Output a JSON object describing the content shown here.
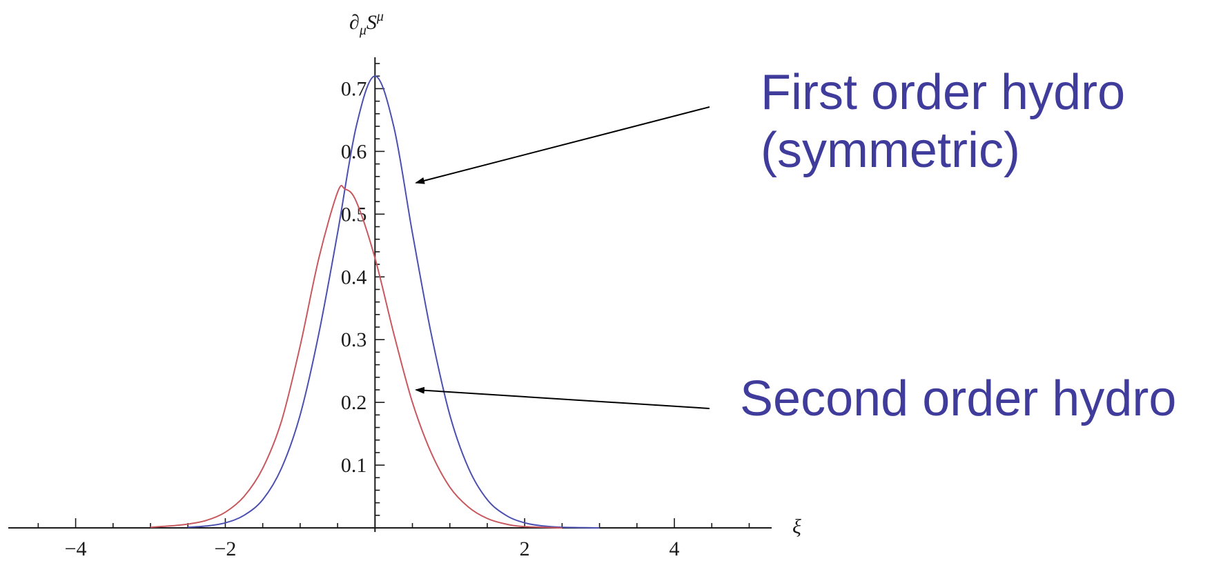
{
  "chart_data": {
    "type": "line",
    "xlabel": "ξ",
    "ylabel": "∂μSμ",
    "ylabel_base": "∂",
    "ylabel_sub": "μ",
    "ylabel_mid": "S",
    "ylabel_sup": "μ",
    "xlim": [
      -4.9,
      5.3
    ],
    "ylim": [
      0,
      0.75
    ],
    "x_ticks": [
      {
        "value": -4,
        "label": "−4"
      },
      {
        "value": -2,
        "label": "−2"
      },
      {
        "value": 2,
        "label": "2"
      },
      {
        "value": 4,
        "label": "4"
      }
    ],
    "y_ticks": [
      {
        "value": 0.1,
        "label": "0.1"
      },
      {
        "value": 0.2,
        "label": "0.2"
      },
      {
        "value": 0.3,
        "label": "0.3"
      },
      {
        "value": 0.4,
        "label": "0.4"
      },
      {
        "value": 0.5,
        "label": "0.5"
      },
      {
        "value": 0.6,
        "label": "0.6"
      },
      {
        "value": 0.7,
        "label": "0.7"
      }
    ],
    "grid": false,
    "legend": "none",
    "series": [
      {
        "color": "#4a4fb0",
        "x": [
          -2.5,
          -2.25,
          -2.0,
          -1.75,
          -1.5,
          -1.25,
          -1.0,
          -0.75,
          -0.5,
          -0.25,
          0.0,
          0.25,
          0.5,
          0.75,
          1.0,
          1.25,
          1.5,
          1.75,
          2.0,
          2.25,
          2.5,
          3.0
        ],
        "y": [
          0.001,
          0.003,
          0.008,
          0.02,
          0.045,
          0.095,
          0.18,
          0.31,
          0.47,
          0.64,
          0.72,
          0.64,
          0.47,
          0.31,
          0.18,
          0.095,
          0.045,
          0.02,
          0.008,
          0.003,
          0.001,
          0.0
        ]
      },
      {
        "color": "#c8585e",
        "x": [
          -3.0,
          -2.75,
          -2.5,
          -2.25,
          -2.0,
          -1.75,
          -1.5,
          -1.25,
          -1.0,
          -0.75,
          -0.5,
          -0.4,
          -0.25,
          0.0,
          0.25,
          0.5,
          0.75,
          1.0,
          1.25,
          1.5,
          1.75,
          2.0,
          2.5
        ],
        "y": [
          0.001,
          0.003,
          0.006,
          0.012,
          0.025,
          0.05,
          0.095,
          0.17,
          0.29,
          0.43,
          0.535,
          0.54,
          0.52,
          0.43,
          0.31,
          0.2,
          0.12,
          0.065,
          0.033,
          0.015,
          0.006,
          0.002,
          0.0
        ]
      }
    ],
    "annotations": [
      {
        "line1": "First order hydro",
        "line2": "(symmetric)",
        "x": 0.55,
        "y": 0.55
      },
      {
        "line1": "Second order hydro",
        "x": 0.55,
        "y": 0.22
      }
    ]
  }
}
